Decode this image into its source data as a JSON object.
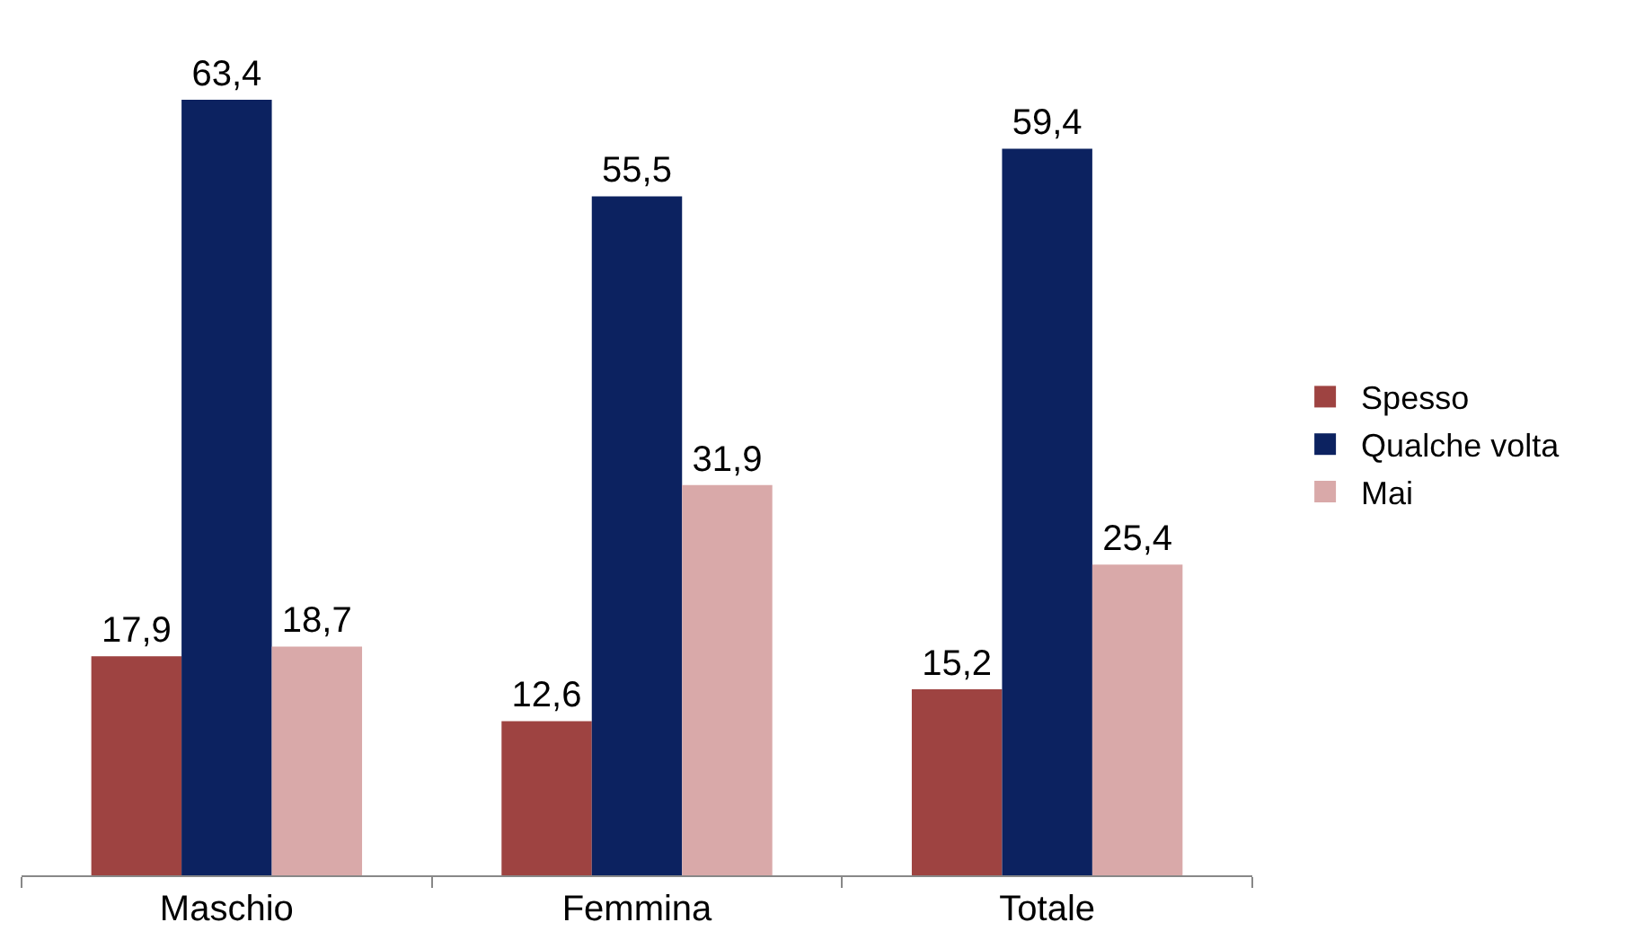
{
  "chart_data": {
    "type": "bar",
    "categories": [
      "Maschio",
      "Femmina",
      "Totale"
    ],
    "series": [
      {
        "name": "Spesso",
        "color": "#9e4341",
        "values": [
          17.9,
          12.6,
          15.2
        ],
        "value_labels": [
          "17,9",
          "12,6",
          "15,2"
        ]
      },
      {
        "name": "Qualche volta",
        "color": "#0c2260",
        "values": [
          63.4,
          55.5,
          59.4
        ],
        "value_labels": [
          "63,4",
          "55,5",
          "59,4"
        ]
      },
      {
        "name": "Mai",
        "color": "#d9a9a9",
        "values": [
          18.7,
          31.9,
          25.4
        ],
        "value_labels": [
          "18,7",
          "31,9",
          "25,4"
        ]
      }
    ],
    "grid": false,
    "legend": "right"
  }
}
